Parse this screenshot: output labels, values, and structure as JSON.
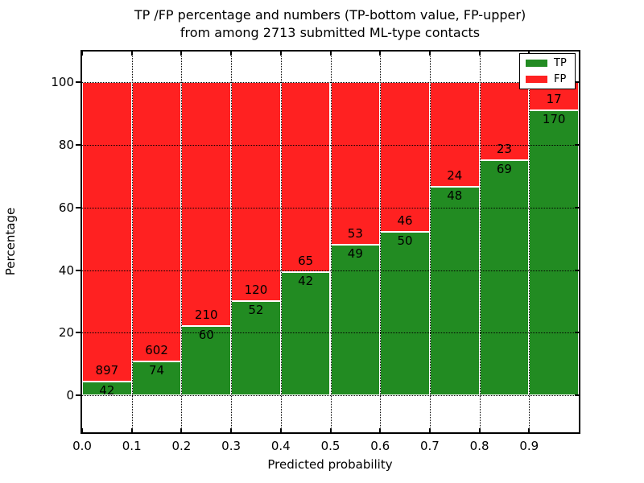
{
  "figure": {
    "title_line1": "TP /FP percentage and numbers (TP-bottom value, FP-upper)",
    "title_line2": "from among 2713 submitted ML-type contacts",
    "xlabel": "Predicted probability",
    "ylabel": "Percentage"
  },
  "legend": {
    "position": "upper-right",
    "items": [
      {
        "label": "TP",
        "color": "#228b22"
      },
      {
        "label": "FP",
        "color": "#ff2121"
      }
    ]
  },
  "chart_data": {
    "type": "bar",
    "stacked": true,
    "normalized": "each bar scaled to 100%",
    "title": "TP /FP percentage and numbers (TP-bottom value, FP-upper) from among 2713 submitted ML-type contacts",
    "xlabel": "Predicted probability",
    "ylabel": "Percentage",
    "total_contacts": 2713,
    "bin_width": 0.1,
    "bin_starts": [
      0.0,
      0.1,
      0.2,
      0.3,
      0.4,
      0.5,
      0.6,
      0.7,
      0.8,
      0.9
    ],
    "series": [
      {
        "name": "TP",
        "color": "#228b22",
        "values": [
          42,
          74,
          60,
          52,
          42,
          49,
          50,
          48,
          69,
          170
        ]
      },
      {
        "name": "FP",
        "color": "#ff2121",
        "values": [
          897,
          602,
          210,
          120,
          65,
          53,
          46,
          24,
          23,
          17
        ]
      }
    ],
    "tp_percent": [
      4.47,
      10.95,
      22.22,
      30.23,
      39.25,
      48.04,
      52.08,
      66.67,
      75.0,
      90.91
    ],
    "xticks": [
      "0.0",
      "0.1",
      "0.2",
      "0.3",
      "0.4",
      "0.5",
      "0.6",
      "0.7",
      "0.8",
      "0.9"
    ],
    "yticks": [
      0,
      20,
      40,
      60,
      80,
      100
    ],
    "xlim": [
      0.0,
      1.0
    ],
    "ylim": [
      -11.7,
      109.7
    ],
    "grid": "dotted-black",
    "bar_edge_color": "#ffffff",
    "axes_color": "#000000"
  }
}
